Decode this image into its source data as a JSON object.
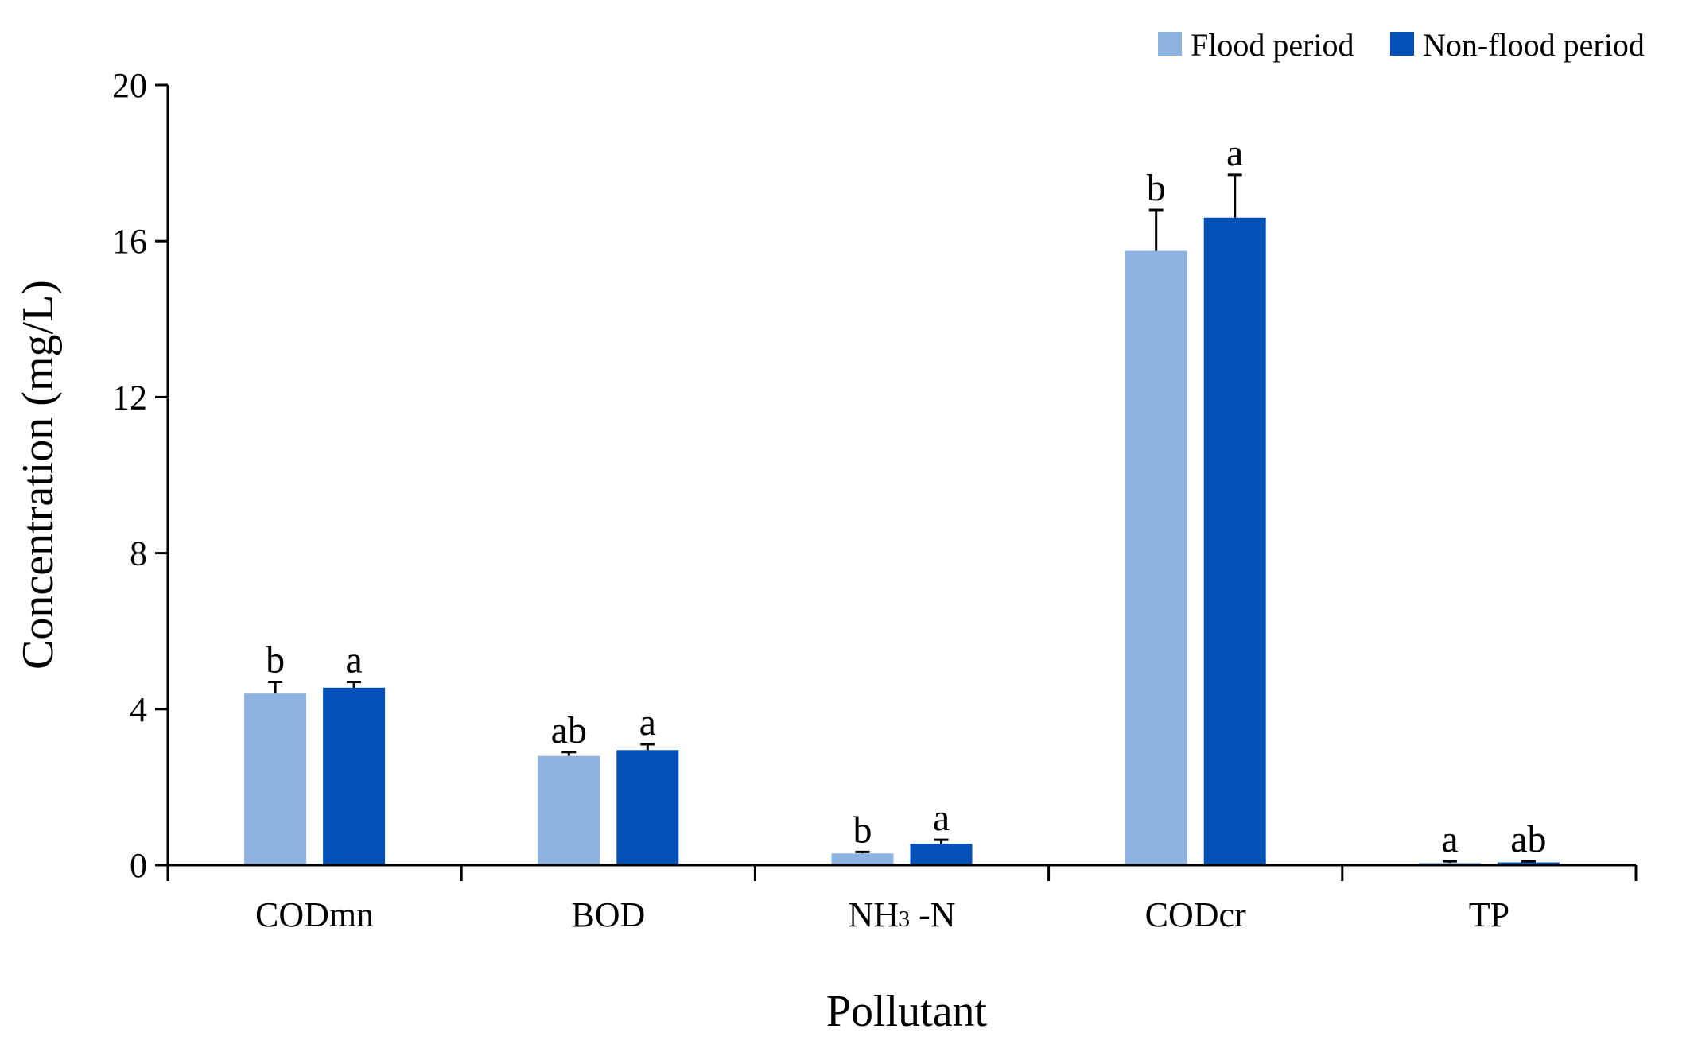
{
  "chart_data": {
    "type": "bar",
    "title": "",
    "xlabel": "Pollutant",
    "ylabel": "Concentration (mg/L)",
    "ylim": [
      0,
      20
    ],
    "yticks": [
      0,
      4,
      8,
      12,
      16,
      20
    ],
    "categories": [
      "CODmn",
      "BOD",
      "NH3 -N",
      "CODcr",
      "TP"
    ],
    "category_labels": [
      {
        "main": "CODmn"
      },
      {
        "main": "BOD"
      },
      {
        "main": "NH",
        "sub": "3",
        "rest": " -N"
      },
      {
        "main": "CODcr"
      },
      {
        "main": "TP"
      }
    ],
    "legend_position": "top-right",
    "series": [
      {
        "name": "Flood period",
        "color": "#8DB3E2",
        "values": [
          4.4,
          2.8,
          0.3,
          15.75,
          0.06
        ],
        "errors": [
          0.3,
          0.1,
          0.04,
          1.05,
          0.04
        ],
        "significance": [
          "b",
          "ab",
          "b",
          "b",
          "a"
        ]
      },
      {
        "name": "Non-flood period",
        "color": "#0050B5",
        "values": [
          4.55,
          2.95,
          0.55,
          16.6,
          0.07
        ],
        "errors": [
          0.15,
          0.15,
          0.1,
          1.1,
          0.03
        ],
        "significance": [
          "a",
          "a",
          "a",
          "a",
          "ab"
        ]
      }
    ]
  }
}
